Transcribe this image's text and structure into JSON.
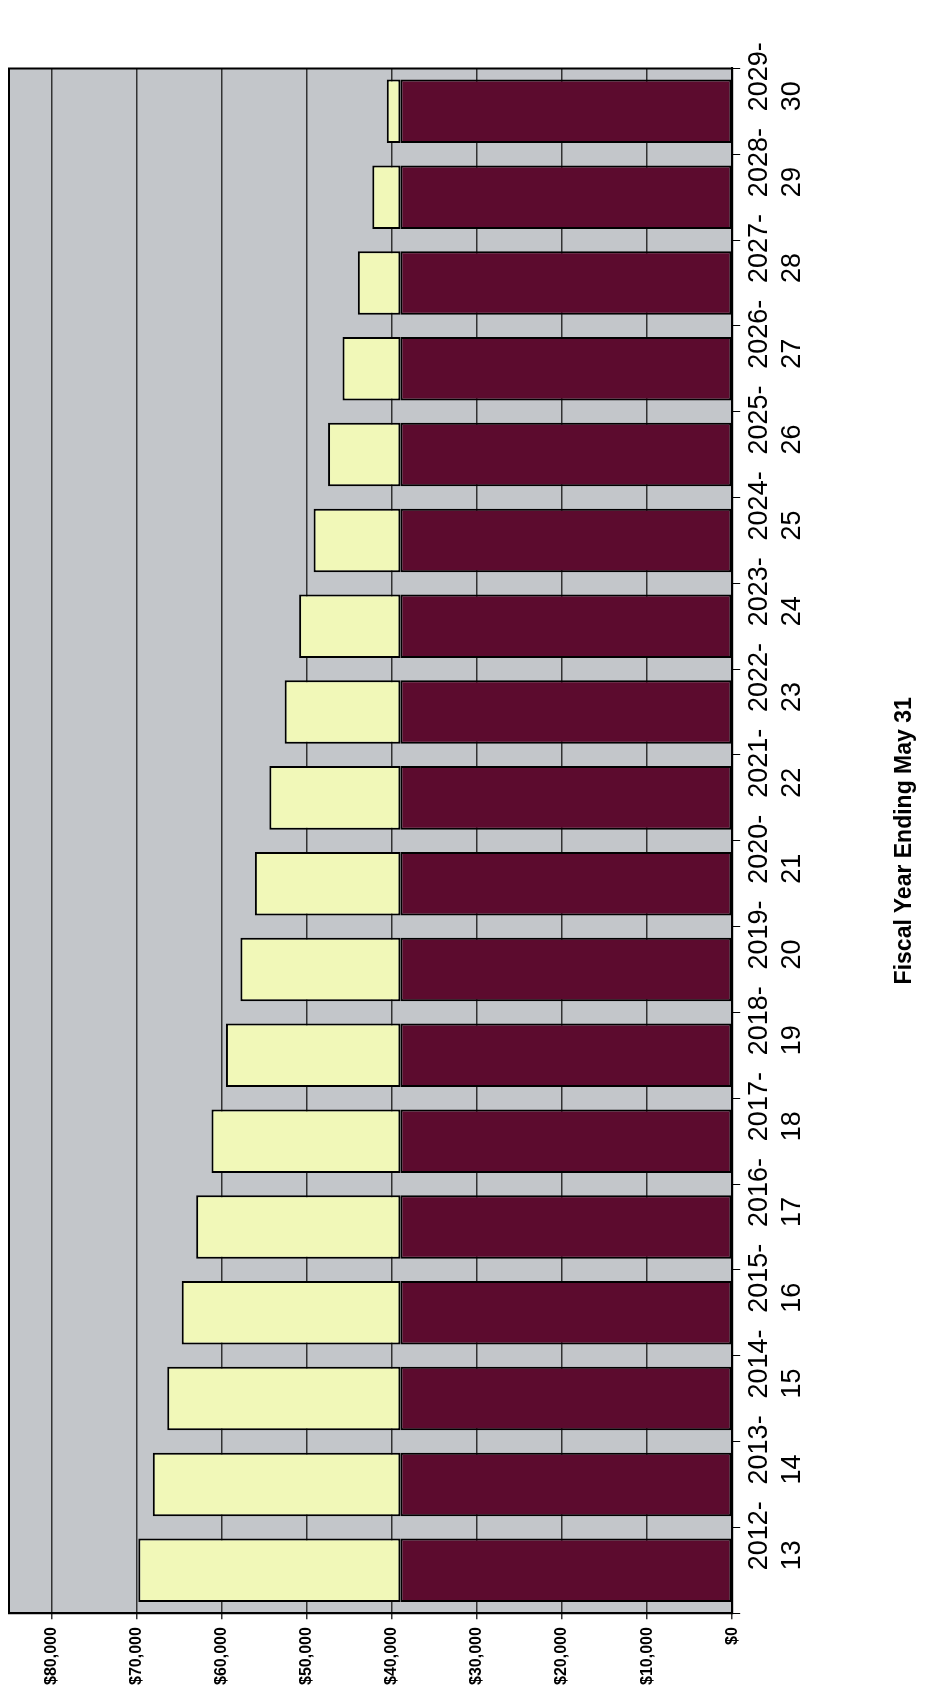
{
  "chart_data": {
    "type": "bar",
    "stacked": true,
    "orientation": "horizontal",
    "ylabel": "Fiscal Year Ending May 31",
    "categories": [
      "2029-30",
      "2028-29",
      "2027-28",
      "2026-27",
      "2025-26",
      "2024-25",
      "2023-24",
      "2022-23",
      "2021-22",
      "2020-21",
      "2019-20",
      "2018-19",
      "2017-18",
      "2016-17",
      "2015-16",
      "2014-15",
      "2013-14",
      "2012-13"
    ],
    "series": [
      {
        "color": "#5c0b2e",
        "values": [
          39000,
          39000,
          39000,
          39000,
          39000,
          39000,
          39000,
          39000,
          39000,
          39000,
          39000,
          39000,
          39000,
          39000,
          39000,
          39000,
          39000,
          39000
        ]
      },
      {
        "color": "#f1f8b8",
        "values": [
          1600,
          3300,
          5000,
          6800,
          8500,
          10200,
          11900,
          13600,
          15400,
          17100,
          18800,
          20500,
          22200,
          24000,
          25700,
          27400,
          29100,
          30800
        ]
      }
    ],
    "xlim": [
      85000,
      0
    ],
    "xticks": [
      {
        "value": 0,
        "label": "$0"
      },
      {
        "value": 10000,
        "label": "$10,000"
      },
      {
        "value": 20000,
        "label": "$20,000"
      },
      {
        "value": 30000,
        "label": "$30,000"
      },
      {
        "value": 40000,
        "label": "$40,000"
      },
      {
        "value": 50000,
        "label": "$50,000"
      },
      {
        "value": 60000,
        "label": "$60,000"
      },
      {
        "value": 70000,
        "label": "$70,000"
      },
      {
        "value": 80000,
        "label": "$80,000"
      }
    ],
    "grid": "x"
  }
}
